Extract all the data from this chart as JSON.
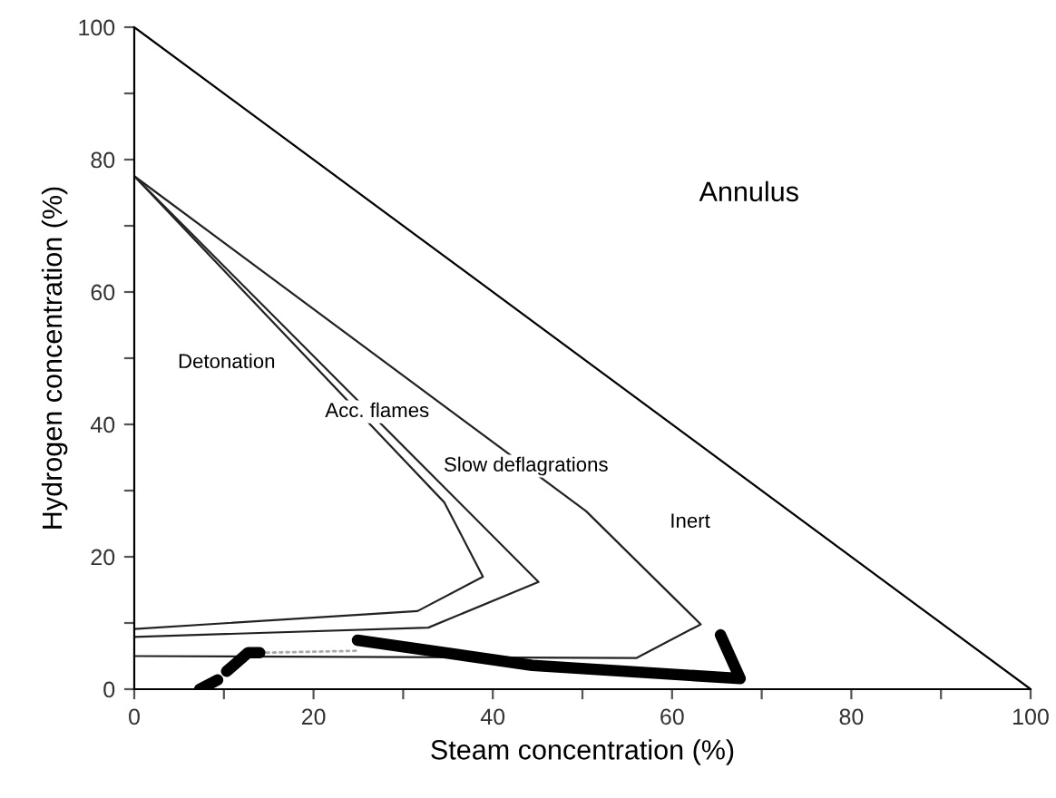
{
  "chart_data": {
    "type": "line",
    "xlabel": "Steam concentration (%)",
    "ylabel": "Hydrogen concentration (%)",
    "xlim": [
      0,
      100
    ],
    "ylim": [
      0,
      100
    ],
    "xticks": [
      0,
      {
        "value": 10,
        "label": null
      },
      20,
      {
        "value": 30,
        "label": null
      },
      40,
      {
        "value": 50,
        "label": null
      },
      60,
      {
        "value": 70,
        "label": null
      },
      80,
      {
        "value": 90,
        "label": null
      },
      100
    ],
    "yticks": [
      0,
      {
        "value": 10,
        "label": null
      },
      20,
      {
        "value": 30,
        "label": null
      },
      40,
      {
        "value": 50,
        "label": null
      },
      60,
      {
        "value": 70,
        "label": null
      },
      80,
      {
        "value": 90,
        "label": null
      },
      100
    ],
    "grid": false,
    "legend": false,
    "marker": "none",
    "series": [
      {
        "color": "#000000",
        "x": [
          0,
          100
        ],
        "values": [
          100,
          0
        ]
      },
      {
        "color": "#222222",
        "x": [
          0,
          34.6,
          38.9,
          31.6,
          0
        ],
        "values": [
          77.5,
          28.2,
          17,
          11.8,
          9.1
        ]
      },
      {
        "color": "#222222",
        "x": [
          0,
          45.1,
          32.8,
          0
        ],
        "values": [
          77.5,
          16.2,
          9.3,
          7.9
        ]
      },
      {
        "color": "#222222",
        "x": [
          0,
          50.4,
          63.2,
          56,
          0
        ],
        "values": [
          77.5,
          26.9,
          9.8,
          4.7,
          5
        ]
      },
      {
        "color": "#aaaaaa",
        "line_style": "dotted",
        "x": [
          14,
          25
        ],
        "values": [
          5.5,
          5.8
        ]
      },
      {
        "color": "#000000",
        "x": [
          7.3,
          9.3,
          null,
          10.3,
          12.7,
          14,
          null,
          24.9,
          44.4,
          67.6,
          65.4
        ],
        "values": [
          0,
          1.4,
          null,
          2.7,
          5.5,
          5.5,
          null,
          7.4,
          3.6,
          1.6,
          8.2
        ]
      }
    ],
    "annotations": [
      "Annulus",
      "Detonation",
      "Acc. flames",
      "Slow deflagrations",
      "Inert"
    ]
  }
}
